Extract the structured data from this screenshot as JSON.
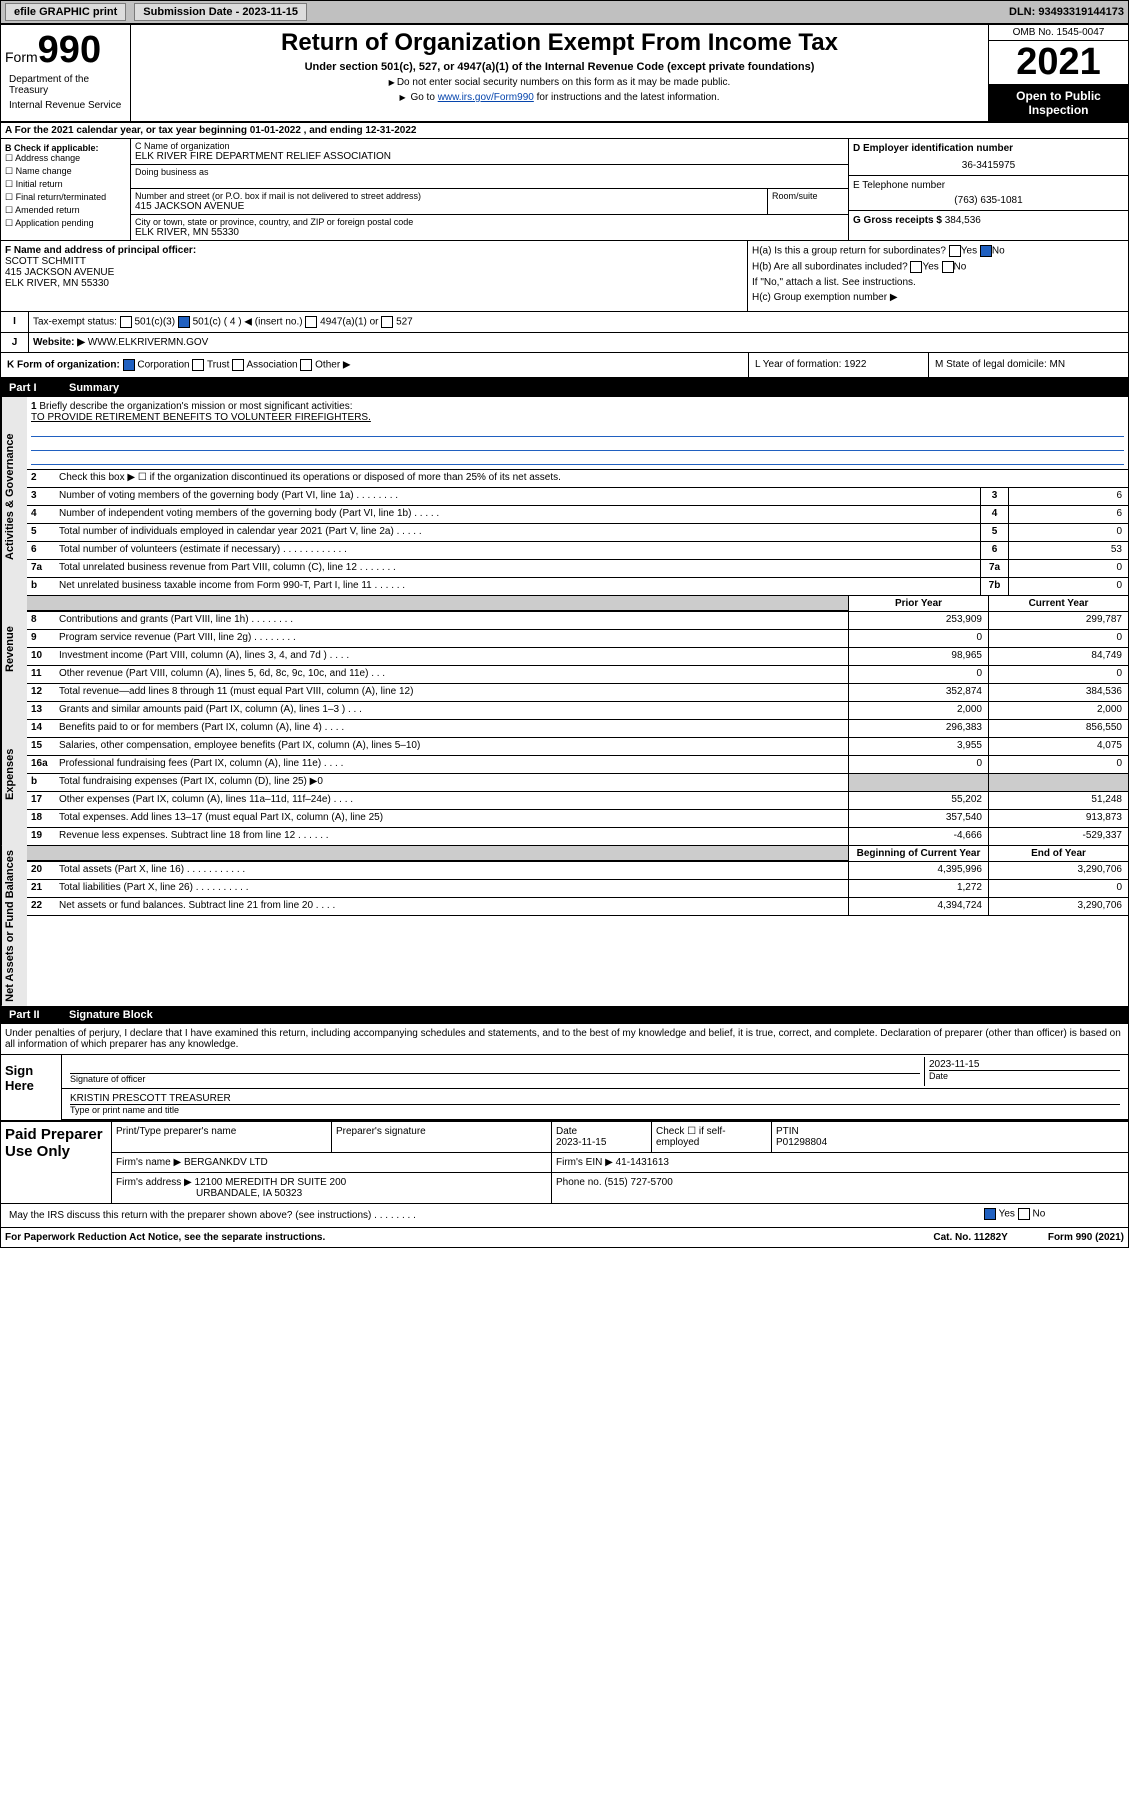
{
  "topbar": {
    "efile": "efile GRAPHIC print",
    "sub_label": "Submission Date - 2023-11-15",
    "dln": "DLN: 93493319144173"
  },
  "header": {
    "form_prefix": "Form",
    "form_num": "990",
    "title": "Return of Organization Exempt From Income Tax",
    "subtitle": "Under section 501(c), 527, or 4947(a)(1) of the Internal Revenue Code (except private foundations)",
    "note1": "Do not enter social security numbers on this form as it may be made public.",
    "note2_pre": "Go to ",
    "note2_link": "www.irs.gov/Form990",
    "note2_post": " for instructions and the latest information.",
    "omb": "OMB No. 1545-0047",
    "year": "2021",
    "open": "Open to Public Inspection",
    "dept": "Department of the Treasury",
    "irs": "Internal Revenue Service"
  },
  "row_a": "For the 2021 calendar year, or tax year beginning 01-01-2022   , and ending 12-31-2022",
  "col_b": {
    "hdr": "B Check if applicable:",
    "items": [
      "Address change",
      "Name change",
      "Initial return",
      "Final return/terminated",
      "Amended return",
      "Application pending"
    ]
  },
  "org": {
    "name_label": "C Name of organization",
    "name": "ELK RIVER FIRE DEPARTMENT RELIEF ASSOCIATION",
    "dba_label": "Doing business as",
    "addr_label": "Number and street (or P.O. box if mail is not delivered to street address)",
    "addr": "415 JACKSON AVENUE",
    "room_label": "Room/suite",
    "city_label": "City or town, state or province, country, and ZIP or foreign postal code",
    "city": "ELK RIVER, MN  55330"
  },
  "col_d": {
    "ein_label": "D Employer identification number",
    "ein": "36-3415975",
    "tel_label": "E Telephone number",
    "tel": "(763) 635-1081",
    "gross_label": "G Gross receipts $",
    "gross": "384,536"
  },
  "col_f": {
    "label": "F Name and address of principal officer:",
    "name": "SCOTT SCHMITT",
    "addr1": "415 JACKSON AVENUE",
    "addr2": "ELK RIVER, MN  55330"
  },
  "col_h": {
    "ha": "H(a)  Is this a group return for subordinates?",
    "hb": "H(b)  Are all subordinates included?",
    "hb_note": "If \"No,\" attach a list. See instructions.",
    "hc": "H(c)  Group exemption number ▶",
    "yes": "Yes",
    "no": "No"
  },
  "row_i": {
    "label": "Tax-exempt status:",
    "opts": [
      "501(c)(3)",
      "501(c) ( 4 ) ◀ (insert no.)",
      "4947(a)(1) or",
      "527"
    ]
  },
  "row_j": {
    "label": "Website: ▶",
    "val": "WWW.ELKRIVERMN.GOV"
  },
  "row_k": {
    "label": "K Form of organization:",
    "opts": [
      "Corporation",
      "Trust",
      "Association",
      "Other ▶"
    ],
    "yof": "L Year of formation: 1922",
    "dom": "M State of legal domicile: MN"
  },
  "part1": {
    "num": "Part I",
    "title": "Summary"
  },
  "summary": {
    "q1": "Briefly describe the organization's mission or most significant activities:",
    "mission": "TO PROVIDE RETIREMENT BENEFITS TO VOLUNTEER FIREFIGHTERS.",
    "q2": "Check this box ▶ ☐  if the organization discontinued its operations or disposed of more than 25% of its net assets.",
    "lines": [
      {
        "n": "3",
        "d": "Number of voting members of the governing body (Part VI, line 1a)   .   .   .   .   .   .   .   .",
        "b": "3",
        "v": "6"
      },
      {
        "n": "4",
        "d": "Number of independent voting members of the governing body (Part VI, line 1b)  .   .   .   .   .",
        "b": "4",
        "v": "6"
      },
      {
        "n": "5",
        "d": "Total number of individuals employed in calendar year 2021 (Part V, line 2a)   .   .   .   .   .",
        "b": "5",
        "v": "0"
      },
      {
        "n": "6",
        "d": "Total number of volunteers (estimate if necessary)   .   .   .   .   .   .   .   .   .   .   .   .",
        "b": "6",
        "v": "53"
      },
      {
        "n": "7a",
        "d": "Total unrelated business revenue from Part VIII, column (C), line 12   .   .   .   .   .   .   .",
        "b": "7a",
        "v": "0"
      },
      {
        "n": "b",
        "d": "Net unrelated business taxable income from Form 990-T, Part I, line 11   .   .   .   .   .   .",
        "b": "7b",
        "v": "0"
      }
    ],
    "colhdr_prior": "Prior Year",
    "colhdr_curr": "Current Year",
    "revenue": [
      {
        "n": "8",
        "d": "Contributions and grants (Part VIII, line 1h)   .   .   .   .   .   .   .   .",
        "p": "253,909",
        "c": "299,787"
      },
      {
        "n": "9",
        "d": "Program service revenue (Part VIII, line 2g)   .   .   .   .   .   .   .   .",
        "p": "0",
        "c": "0"
      },
      {
        "n": "10",
        "d": "Investment income (Part VIII, column (A), lines 3, 4, and 7d )   .   .   .   .",
        "p": "98,965",
        "c": "84,749"
      },
      {
        "n": "11",
        "d": "Other revenue (Part VIII, column (A), lines 5, 6d, 8c, 9c, 10c, and 11e)   .   .   .",
        "p": "0",
        "c": "0"
      },
      {
        "n": "12",
        "d": "Total revenue—add lines 8 through 11 (must equal Part VIII, column (A), line 12)",
        "p": "352,874",
        "c": "384,536"
      }
    ],
    "expenses": [
      {
        "n": "13",
        "d": "Grants and similar amounts paid (Part IX, column (A), lines 1–3 )   .   .   .",
        "p": "2,000",
        "c": "2,000"
      },
      {
        "n": "14",
        "d": "Benefits paid to or for members (Part IX, column (A), line 4)   .   .   .   .",
        "p": "296,383",
        "c": "856,550"
      },
      {
        "n": "15",
        "d": "Salaries, other compensation, employee benefits (Part IX, column (A), lines 5–10)",
        "p": "3,955",
        "c": "4,075"
      },
      {
        "n": "16a",
        "d": "Professional fundraising fees (Part IX, column (A), line 11e)   .   .   .   .",
        "p": "0",
        "c": "0"
      },
      {
        "n": "b",
        "d": "Total fundraising expenses (Part IX, column (D), line 25) ▶0",
        "p": "",
        "c": "",
        "shade": true
      },
      {
        "n": "17",
        "d": "Other expenses (Part IX, column (A), lines 11a–11d, 11f–24e)   .   .   .   .",
        "p": "55,202",
        "c": "51,248"
      },
      {
        "n": "18",
        "d": "Total expenses. Add lines 13–17 (must equal Part IX, column (A), line 25)",
        "p": "357,540",
        "c": "913,873"
      },
      {
        "n": "19",
        "d": "Revenue less expenses. Subtract line 18 from line 12   .   .   .   .   .   .",
        "p": "-4,666",
        "c": "-529,337"
      }
    ],
    "colhdr_beg": "Beginning of Current Year",
    "colhdr_end": "End of Year",
    "assets": [
      {
        "n": "20",
        "d": "Total assets (Part X, line 16)   .   .   .   .   .   .   .   .   .   .   .",
        "p": "4,395,996",
        "c": "3,290,706"
      },
      {
        "n": "21",
        "d": "Total liabilities (Part X, line 26)   .   .   .   .   .   .   .   .   .   .",
        "p": "1,272",
        "c": "0"
      },
      {
        "n": "22",
        "d": "Net assets or fund balances. Subtract line 21 from line 20   .   .   .   .",
        "p": "4,394,724",
        "c": "3,290,706"
      }
    ]
  },
  "part2": {
    "num": "Part II",
    "title": "Signature Block"
  },
  "sig": {
    "decl": "Under penalties of perjury, I declare that I have examined this return, including accompanying schedules and statements, and to the best of my knowledge and belief, it is true, correct, and complete. Declaration of preparer (other than officer) is based on all information of which preparer has any knowledge.",
    "sign_here": "Sign Here",
    "sig_label": "Signature of officer",
    "date": "2023-11-15",
    "date_label": "Date",
    "officer": "KRISTIN PRESCOTT TREASURER",
    "officer_label": "Type or print name and title"
  },
  "paid": {
    "label": "Paid Preparer Use Only",
    "h_name": "Print/Type preparer's name",
    "h_sig": "Preparer's signature",
    "h_date": "Date",
    "date": "2023-11-15",
    "h_check": "Check ☐ if self-employed",
    "h_ptin": "PTIN",
    "ptin": "P01298804",
    "firm_label": "Firm's name   ▶",
    "firm": "BERGANKDV LTD",
    "ein_label": "Firm's EIN ▶",
    "ein": "41-1431613",
    "addr_label": "Firm's address ▶",
    "addr1": "12100 MEREDITH DR SUITE 200",
    "addr2": "URBANDALE, IA  50323",
    "phone_label": "Phone no.",
    "phone": "(515) 727-5700"
  },
  "bottom": {
    "q": "May the IRS discuss this return with the preparer shown above? (see instructions)   .   .   .   .   .   .   .   .",
    "yes": "Yes",
    "no": "No"
  },
  "footer": {
    "l": "For Paperwork Reduction Act Notice, see the separate instructions.",
    "m": "Cat. No. 11282Y",
    "r": "Form 990 (2021)"
  },
  "vtabs": {
    "gov": "Activities & Governance",
    "rev": "Revenue",
    "exp": "Expenses",
    "net": "Net Assets or Fund Balances"
  }
}
